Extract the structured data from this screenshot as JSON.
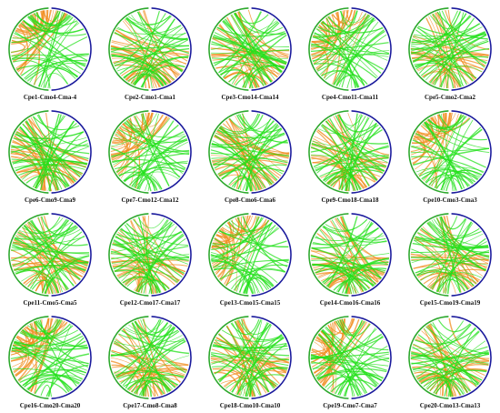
{
  "figure": {
    "panels": [
      {
        "label": "Cpe1-Cmo4-Cma-4"
      },
      {
        "label": "Cpe2-Cmo1-Cma1"
      },
      {
        "label": "Cpe3-Cmo14-Cma14"
      },
      {
        "label": "Cpe4-Cmo11-Cma11"
      },
      {
        "label": "Cpe5-Cmo2-Cma2"
      },
      {
        "label": "Cpe6-Cmo9-Cma9"
      },
      {
        "label": "Cpe7-Cmo12-Cma12"
      },
      {
        "label": "Cpe8-Cmo6-Cma6"
      },
      {
        "label": "Cpe9-Cmo18-Cma18"
      },
      {
        "label": "Cpe10-Cmo3-Cma3"
      },
      {
        "label": "Cpe11-Cmo5-Cma5"
      },
      {
        "label": "Cpe12-Cmo17-Cma17"
      },
      {
        "label": "Cpe13-Cmo15-Cma15"
      },
      {
        "label": "Cpe14-Cmo16-Cma16"
      },
      {
        "label": "Cpe15-Cmo19-Cma19"
      },
      {
        "label": "Cpe16-Cmo20-Cma20"
      },
      {
        "label": "Cpe17-Cmo8-Cma8"
      },
      {
        "label": "Cpe18-Cmo10-Cma10"
      },
      {
        "label": "Cpe19-Cmo7-Cma7"
      },
      {
        "label": "Cpe20-Cmo13-Cma13"
      }
    ],
    "colors": {
      "ring_left": "#2ca82c",
      "ring_right": "#1a1a9c",
      "link_orange": "#f08c1e",
      "link_green": "#22e01a"
    }
  }
}
